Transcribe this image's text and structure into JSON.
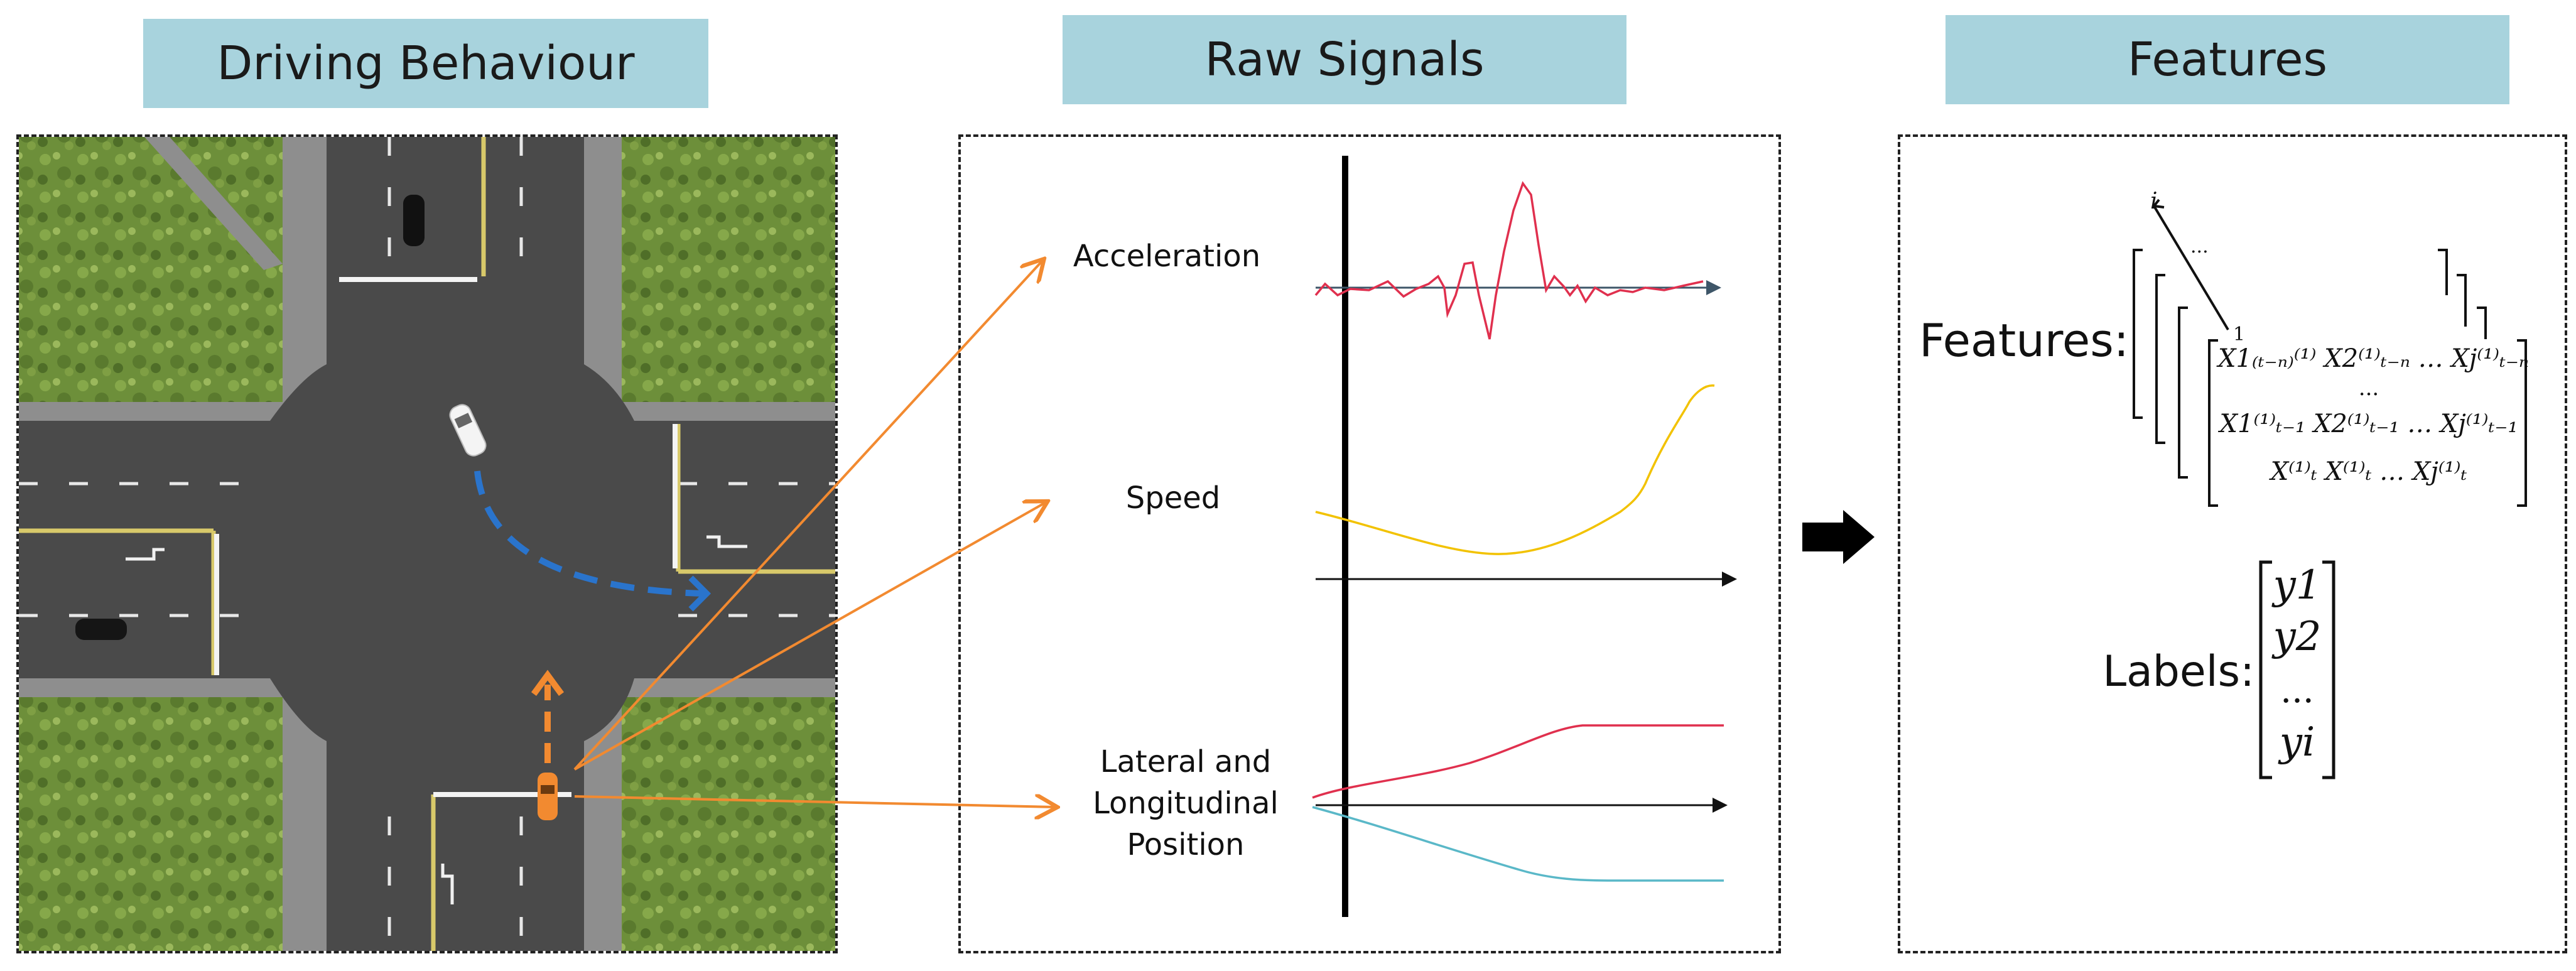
{
  "headers": {
    "driving": "Driving Behaviour",
    "raw": "Raw Signals",
    "features": "Features"
  },
  "signals": {
    "acceleration": "Acceleration",
    "speed": "Speed",
    "position_line1": "Lateral and",
    "position_line2": "Longitudinal",
    "position_line3": "Position"
  },
  "features_panel": {
    "features_label": "Features:",
    "labels_label": "Labels:",
    "index_i": "i",
    "index_1": "1",
    "dots": "...",
    "matrix_row1": "X1₍ₜ₋ₙ₎⁽¹⁾  X2⁽¹⁾ₜ₋ₙ … Xj⁽¹⁾ₜ₋ₙ",
    "matrix_row2": "X1⁽¹⁾ₜ₋₁  X2⁽¹⁾ₜ₋₁ … Xj⁽¹⁾ₜ₋₁",
    "matrix_row3": "X⁽¹⁾ₜ  X⁽¹⁾ₜ … Xj⁽¹⁾ₜ",
    "labels": [
      "y1",
      "y2",
      "...",
      "yi"
    ]
  },
  "colors": {
    "banner": "#a8d3dd",
    "orange": "#f28a30",
    "blue_path": "#2a74cc",
    "accel_red": "#e0304e",
    "speed_yellow": "#f2c200",
    "lateral_red": "#e0304e",
    "long_cyan": "#5ab8c8",
    "road": "#4a4a4a",
    "grass": "#6d8f3a"
  }
}
